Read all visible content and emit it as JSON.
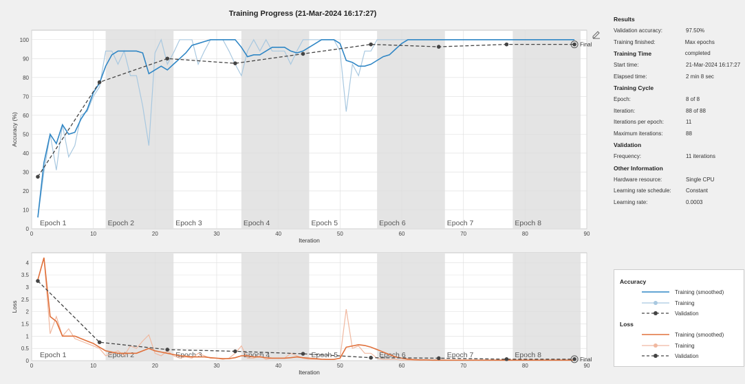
{
  "title": "Training Progress (21-Mar-2024 16:17:27)",
  "results": {
    "header": "Results",
    "rows": [
      {
        "k": "Validation accuracy:",
        "v": "97.50%"
      },
      {
        "k": "Training finished:",
        "v": "Max epochs completed"
      }
    ]
  },
  "training_time": {
    "header": "Training Time",
    "rows": [
      {
        "k": "Start time:",
        "v": "21-Mar-2024 16:17:27"
      },
      {
        "k": "Elapsed time:",
        "v": "2 min 8 sec"
      }
    ]
  },
  "training_cycle": {
    "header": "Training Cycle",
    "rows": [
      {
        "k": "Epoch:",
        "v": "8 of 8"
      },
      {
        "k": "Iteration:",
        "v": "88 of 88"
      },
      {
        "k": "Iterations per epoch:",
        "v": "11"
      },
      {
        "k": "Maximum iterations:",
        "v": "88"
      }
    ]
  },
  "validation": {
    "header": "Validation",
    "rows": [
      {
        "k": "Frequency:",
        "v": "11 iterations"
      }
    ]
  },
  "other": {
    "header": "Other Information",
    "rows": [
      {
        "k": "Hardware resource:",
        "v": "Single CPU"
      },
      {
        "k": "Learning rate schedule:",
        "v": "Constant"
      },
      {
        "k": "Learning rate:",
        "v": "0.0003"
      }
    ]
  },
  "legend": {
    "accuracy_header": "Accuracy",
    "loss_header": "Loss",
    "smoothed": "Training (smoothed)",
    "training": "Training",
    "validation": "Validation"
  },
  "colors": {
    "acc_smooth": "#2f86c5",
    "acc_raw": "#a8c8e0",
    "loss_smooth": "#e0703a",
    "loss_raw": "#f0b8a0",
    "validation": "#444444"
  },
  "chart_data": [
    {
      "type": "line",
      "xlabel": "Iteration",
      "ylabel": "Accuracy (%)",
      "xlim": [
        0,
        90
      ],
      "ylim": [
        0,
        105
      ],
      "xticks": [
        0,
        10,
        20,
        30,
        40,
        50,
        60,
        70,
        80,
        90
      ],
      "yticks": [
        0,
        10,
        20,
        30,
        40,
        50,
        60,
        70,
        80,
        90,
        100
      ],
      "epochs": [
        "Epoch 1",
        "Epoch 2",
        "Epoch 3",
        "Epoch 4",
        "Epoch 5",
        "Epoch 6",
        "Epoch 7",
        "Epoch 8"
      ],
      "final_label": "Final",
      "series": [
        {
          "key": "raw",
          "x": [
            1,
            2,
            3,
            4,
            5,
            6,
            7,
            8,
            9,
            10,
            11,
            12,
            13,
            14,
            15,
            16,
            17,
            18,
            19,
            20,
            21,
            22,
            23,
            24,
            25,
            26,
            27,
            28,
            29,
            30,
            31,
            32,
            33,
            34,
            35,
            36,
            37,
            38,
            39,
            40,
            41,
            42,
            43,
            44,
            45,
            46,
            47,
            48,
            49,
            50,
            51,
            52,
            53,
            54,
            55,
            56,
            57,
            58,
            59,
            60,
            61,
            62,
            63,
            64,
            65,
            66,
            67,
            68,
            69,
            70,
            71,
            72,
            73,
            74,
            75,
            76,
            77,
            78,
            79,
            80,
            81,
            82,
            83,
            84,
            85,
            86,
            87,
            88
          ],
          "y": [
            6,
            30,
            50,
            31,
            55,
            38,
            44,
            60,
            62,
            70,
            75,
            94,
            94,
            87,
            94,
            81,
            81,
            65,
            44,
            93,
            100,
            87,
            93,
            100,
            100,
            100,
            87,
            94,
            100,
            100,
            100,
            94,
            87,
            81,
            94,
            100,
            94,
            100,
            94,
            94,
            94,
            87,
            94,
            100,
            100,
            100,
            100,
            100,
            100,
            94,
            62,
            87,
            81,
            94,
            94,
            100,
            100,
            100,
            100,
            100,
            100,
            100,
            100,
            100,
            100,
            100,
            100,
            100,
            100,
            100,
            100,
            100,
            100,
            100,
            100,
            100,
            100,
            100,
            100,
            100,
            100,
            100,
            100,
            100,
            100,
            100,
            100,
            100
          ]
        },
        {
          "key": "smooth",
          "x": [
            1,
            2,
            3,
            4,
            5,
            6,
            7,
            8,
            9,
            10,
            11,
            12,
            13,
            14,
            15,
            16,
            17,
            18,
            19,
            20,
            21,
            22,
            23,
            24,
            25,
            26,
            27,
            28,
            29,
            30,
            31,
            32,
            33,
            34,
            35,
            36,
            37,
            38,
            39,
            40,
            41,
            42,
            43,
            44,
            45,
            46,
            47,
            48,
            49,
            50,
            51,
            52,
            53,
            54,
            55,
            56,
            57,
            58,
            59,
            60,
            61,
            62,
            63,
            64,
            65,
            66,
            67,
            68,
            69,
            70,
            71,
            72,
            73,
            74,
            75,
            76,
            77,
            78,
            79,
            80,
            81,
            82,
            83,
            84,
            85,
            86,
            87,
            88
          ],
          "y": [
            6,
            35,
            50,
            45,
            55,
            50,
            51,
            58,
            63,
            72,
            77,
            86,
            92,
            94,
            94,
            94,
            94,
            93,
            82,
            84,
            86,
            84,
            87,
            90,
            93,
            97,
            98,
            99,
            100,
            100,
            100,
            100,
            100,
            96,
            91,
            92,
            92,
            94,
            96,
            96,
            96,
            94,
            93,
            94,
            96,
            98,
            100,
            100,
            100,
            98,
            89,
            88,
            86,
            86,
            87,
            89,
            91,
            92,
            95,
            98,
            100,
            100,
            100,
            100,
            100,
            100,
            100,
            100,
            100,
            100,
            100,
            100,
            100,
            100,
            100,
            100,
            100,
            100,
            100,
            100,
            100,
            100,
            100,
            100,
            100,
            100,
            100,
            100
          ]
        },
        {
          "key": "validation",
          "x": [
            1,
            11,
            22,
            33,
            44,
            55,
            66,
            77,
            88
          ],
          "y": [
            27.5,
            77.5,
            90,
            87.5,
            92.5,
            97.5,
            96.25,
            97.5,
            97.5
          ]
        }
      ]
    },
    {
      "type": "line",
      "xlabel": "Iteration",
      "ylabel": "Loss",
      "xlim": [
        0,
        90
      ],
      "ylim": [
        0,
        4.4
      ],
      "xticks": [
        0,
        10,
        20,
        30,
        40,
        50,
        60,
        70,
        80,
        90
      ],
      "yticks": [
        0,
        0.5,
        1,
        1.5,
        2,
        2.5,
        3,
        3.5,
        4
      ],
      "epochs": [
        "Epoch 1",
        "Epoch 2",
        "Epoch 3",
        "Epoch 4",
        "Epoch 5",
        "Epoch 6",
        "Epoch 7",
        "Epoch 8"
      ],
      "final_label": "Final",
      "series": [
        {
          "key": "raw",
          "x": [
            1,
            2,
            3,
            4,
            5,
            6,
            7,
            8,
            9,
            10,
            11,
            12,
            13,
            14,
            15,
            16,
            17,
            18,
            19,
            20,
            21,
            22,
            23,
            24,
            25,
            26,
            27,
            28,
            29,
            30,
            31,
            32,
            33,
            34,
            35,
            36,
            37,
            38,
            39,
            40,
            41,
            42,
            43,
            44,
            45,
            46,
            47,
            48,
            49,
            50,
            51,
            52,
            53,
            54,
            55,
            56,
            57,
            58,
            59,
            60,
            61,
            62,
            63,
            64,
            65,
            66,
            67,
            68,
            69,
            70,
            71,
            72,
            73,
            74,
            75,
            76,
            77,
            78,
            79,
            80,
            81,
            82,
            83,
            84,
            85,
            86,
            87,
            88
          ],
          "y": [
            3.3,
            4.2,
            1.1,
            1.8,
            1.0,
            1.3,
            0.9,
            0.8,
            0.7,
            0.6,
            0.5,
            0.2,
            0.3,
            0.4,
            0.2,
            0.6,
            0.5,
            0.8,
            1.05,
            0.3,
            0.2,
            0.4,
            0.2,
            0.1,
            0.15,
            0.1,
            0.3,
            0.2,
            0.1,
            0.1,
            0.05,
            0.1,
            0.3,
            0.6,
            0.1,
            0.1,
            0.2,
            0.05,
            0.1,
            0.1,
            0.1,
            0.3,
            0.2,
            0.1,
            0.05,
            0.05,
            0.05,
            0.05,
            0.05,
            0.1,
            2.1,
            0.5,
            0.6,
            0.3,
            0.3,
            0.1,
            0.05,
            0.05,
            0.05,
            0.02,
            0.02,
            0.02,
            0.02,
            0.02,
            0.02,
            0.02,
            0.02,
            0.02,
            0.02,
            0.02,
            0.02,
            0.02,
            0.02,
            0.02,
            0.02,
            0.02,
            0.02,
            0.02,
            0.02,
            0.02,
            0.02,
            0.02,
            0.02,
            0.02,
            0.02,
            0.02,
            0.02,
            0.02
          ]
        },
        {
          "key": "smooth",
          "x": [
            1,
            2,
            3,
            4,
            5,
            6,
            7,
            8,
            9,
            10,
            11,
            12,
            13,
            14,
            15,
            16,
            17,
            18,
            19,
            20,
            21,
            22,
            23,
            24,
            25,
            26,
            27,
            28,
            29,
            30,
            31,
            32,
            33,
            34,
            35,
            36,
            37,
            38,
            39,
            40,
            41,
            42,
            43,
            44,
            45,
            46,
            47,
            48,
            49,
            50,
            51,
            52,
            53,
            54,
            55,
            56,
            57,
            58,
            59,
            60,
            61,
            62,
            63,
            64,
            65,
            66,
            67,
            68,
            69,
            70,
            71,
            72,
            73,
            74,
            75,
            76,
            77,
            78,
            79,
            80,
            81,
            82,
            83,
            84,
            85,
            86,
            87,
            88
          ],
          "y": [
            3.3,
            4.2,
            1.8,
            1.6,
            1.0,
            1.0,
            1.0,
            0.9,
            0.8,
            0.7,
            0.55,
            0.4,
            0.35,
            0.3,
            0.3,
            0.3,
            0.3,
            0.4,
            0.5,
            0.4,
            0.35,
            0.3,
            0.25,
            0.2,
            0.18,
            0.15,
            0.15,
            0.15,
            0.12,
            0.1,
            0.08,
            0.08,
            0.12,
            0.2,
            0.2,
            0.15,
            0.15,
            0.12,
            0.1,
            0.1,
            0.1,
            0.12,
            0.15,
            0.12,
            0.1,
            0.08,
            0.06,
            0.05,
            0.05,
            0.1,
            0.55,
            0.6,
            0.65,
            0.62,
            0.55,
            0.45,
            0.35,
            0.25,
            0.15,
            0.1,
            0.06,
            0.04,
            0.03,
            0.03,
            0.02,
            0.02,
            0.02,
            0.02,
            0.02,
            0.02,
            0.02,
            0.02,
            0.02,
            0.02,
            0.02,
            0.02,
            0.02,
            0.02,
            0.02,
            0.02,
            0.02,
            0.02,
            0.02,
            0.02,
            0.02,
            0.02,
            0.02,
            0.02
          ]
        },
        {
          "key": "validation",
          "x": [
            1,
            11,
            22,
            33,
            44,
            55,
            66,
            77,
            88
          ],
          "y": [
            3.25,
            0.75,
            0.45,
            0.38,
            0.28,
            0.12,
            0.1,
            0.06,
            0.06
          ]
        }
      ]
    }
  ]
}
